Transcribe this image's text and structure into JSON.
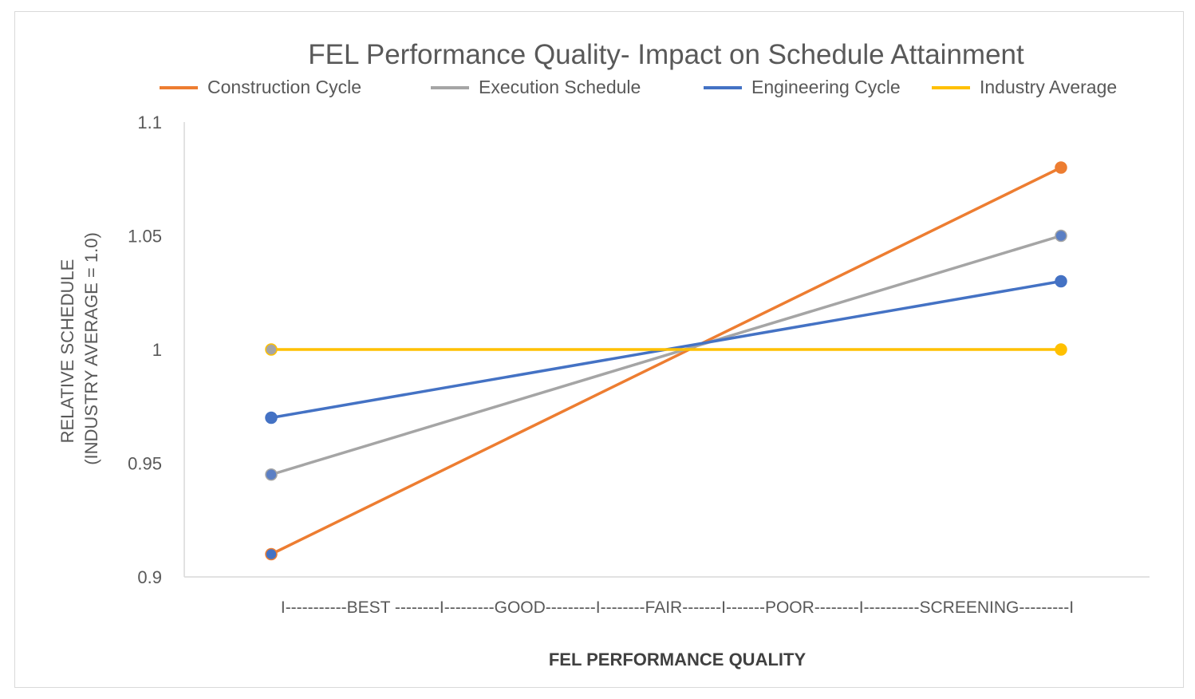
{
  "chart_data": {
    "type": "line",
    "title": "FEL Performance Quality- Impact on Schedule Attainment",
    "xlabel": "FEL PERFORMANCE QUALITY",
    "ylabel_line1": "RELATIVE SCHEDULE",
    "ylabel_line2": "(INDUSTRY AVERAGE = 1.0)",
    "x_axis_text": "I-----------BEST --------I---------GOOD---------I--------FAIR-------I-------POOR--------I----------SCREENING---------I",
    "categories": [
      "BEST",
      "SCREENING"
    ],
    "ylim": [
      0.9,
      1.1
    ],
    "yticks": [
      "0.9",
      "0.95",
      "1",
      "1.05",
      "1.1"
    ],
    "legend_position": "top",
    "grid": false,
    "series": [
      {
        "name": "Construction Cycle",
        "color": "#ED7D31",
        "values": [
          0.91,
          1.08
        ]
      },
      {
        "name": "Execution Schedule",
        "color": "#A5A5A5",
        "values": [
          0.945,
          1.05
        ]
      },
      {
        "name": "Engineering Cycle",
        "color": "#4472C4",
        "values": [
          0.97,
          1.03
        ]
      },
      {
        "name": "Industry Average",
        "color": "#FFC000",
        "values": [
          1.0,
          1.0
        ]
      }
    ],
    "marker_colors": [
      [
        "#4472C4",
        "#ED7D31"
      ],
      [
        "#5B7FC4",
        "#5B7FC4"
      ],
      [
        "#4472C4",
        "#4472C4"
      ],
      [
        "#A5A5A5",
        "#FFC000"
      ]
    ]
  }
}
